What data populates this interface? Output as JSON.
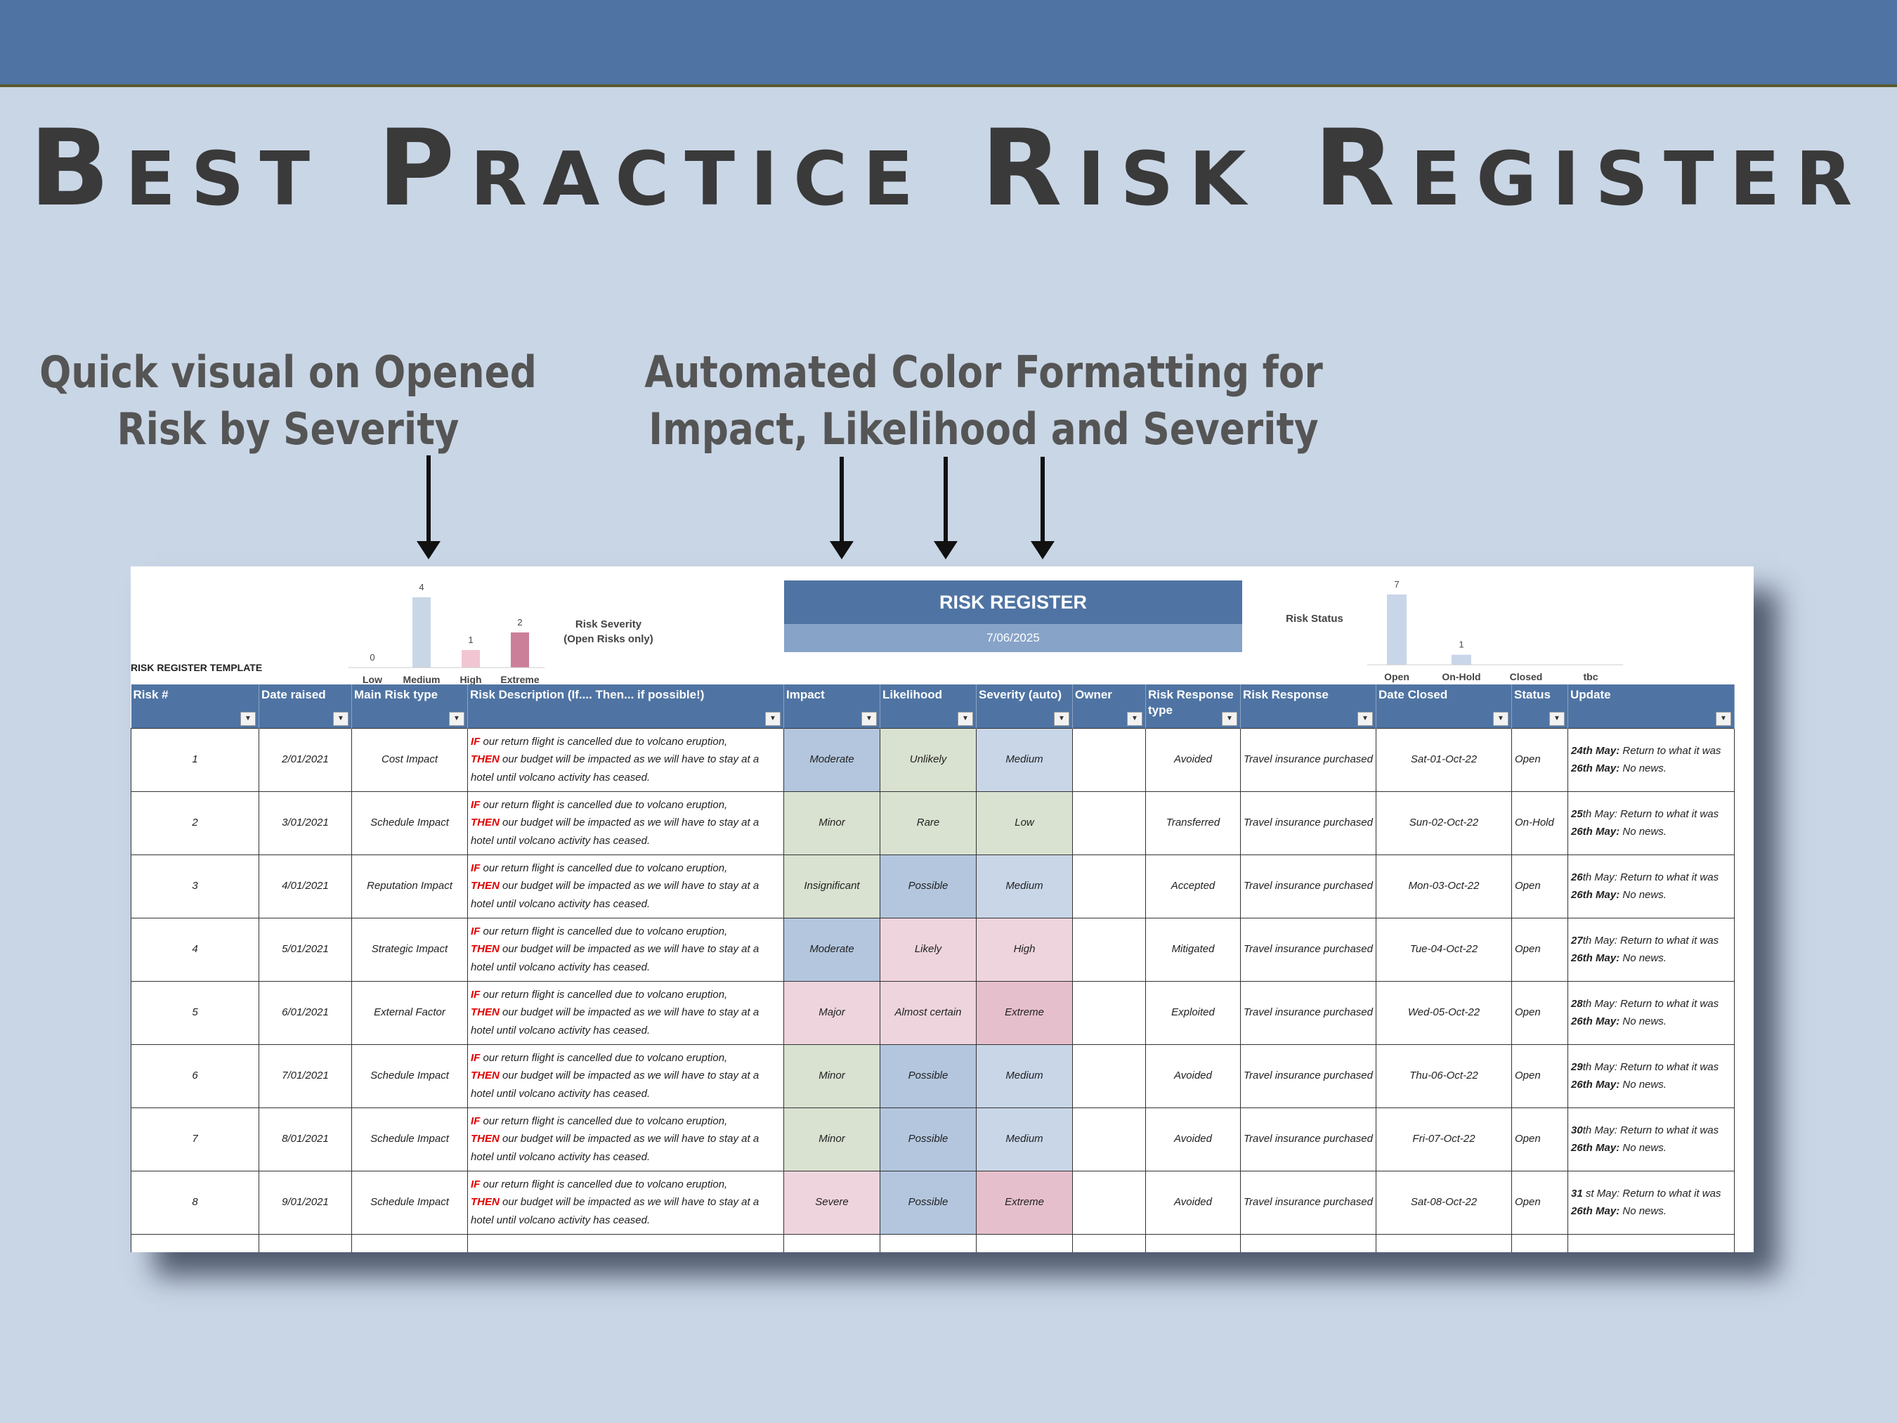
{
  "page": {
    "title": "Best Practice Risk Register",
    "callout_left": [
      "Quick visual on Opened",
      "Risk by Severity"
    ],
    "callout_right": [
      "Automated Color Formatting for",
      "Impact, Likelihood and Severity"
    ]
  },
  "sheet": {
    "template_label": "RISK REGISTER TEMPLATE",
    "banner_title": "RISK REGISTER",
    "banner_date": "7/06/2025",
    "severity_chart": {
      "caption": [
        "Risk Severity",
        "(Open Risks only)"
      ],
      "categories": [
        "Low",
        "Medium",
        "High",
        "Extreme"
      ],
      "values": [
        0,
        4,
        1,
        2
      ],
      "colors": [
        "#c9d6e6",
        "#c9d6e6",
        "#f1c6d2",
        "#cc7f98"
      ]
    },
    "status_chart": {
      "caption": "Risk Status",
      "categories": [
        "Open",
        "On-Hold",
        "Closed",
        "tbc"
      ],
      "values": [
        7,
        1,
        null,
        null
      ],
      "colors": [
        "#c9d6ea",
        "#c9d6ea",
        "#c9d6ea",
        "#c9d6ea"
      ]
    }
  },
  "colors": {
    "accent": "#4f74a3",
    "blue_cell": "#b3c6de",
    "light_blue_cell": "#c8d6e8",
    "green_cell": "#d9e1d0",
    "pink_cell": "#eed4dd",
    "rose_cell": "#e6bfcc"
  },
  "table": {
    "columns": [
      "Risk #",
      "Date raised",
      "Main Risk type",
      "Risk Description (If.... Then... if possible!)",
      "Impact",
      "Likelihood",
      "Severity  (auto)",
      "Owner",
      "Risk Response type",
      "Risk Response",
      "Date Closed",
      "Status",
      "Update"
    ],
    "desc": {
      "if": "IF",
      "if_text": " our return flight is cancelled due to volcano eruption,",
      "then": "THEN",
      "then_text": " our budget will be impacted as we will have to stay at a hotel until volcano activity has ceased."
    },
    "update_second": "26th May:",
    "update_second_text": " No news.",
    "rows": [
      {
        "id": "1",
        "date": "2/01/2021",
        "type": "Cost Impact",
        "impact": "Moderate",
        "likelihood": "Unlikely",
        "severity": "Medium",
        "owner": "",
        "resp_type": "Avoided",
        "response": "Travel insurance purchased",
        "closed": "Sat-01-Oct-22",
        "status": "Open",
        "upd_bold": "24th May:",
        "upd_text": " Return to what it was"
      },
      {
        "id": "2",
        "date": "3/01/2021",
        "type": "Schedule Impact",
        "impact": "Minor",
        "likelihood": "Rare",
        "severity": "Low",
        "owner": "",
        "resp_type": "Transferred",
        "response": "Travel insurance purchased",
        "closed": "Sun-02-Oct-22",
        "status": "On-Hold",
        "upd_bold": "25",
        "upd_text": "th May: Return to what it was"
      },
      {
        "id": "3",
        "date": "4/01/2021",
        "type": "Reputation Impact",
        "impact": "Insignificant",
        "likelihood": "Possible",
        "severity": "Medium",
        "owner": "",
        "resp_type": "Accepted",
        "response": "Travel insurance purchased",
        "closed": "Mon-03-Oct-22",
        "status": "Open",
        "upd_bold": "26",
        "upd_text": "th May: Return to what it was"
      },
      {
        "id": "4",
        "date": "5/01/2021",
        "type": "Strategic Impact",
        "impact": "Moderate",
        "likelihood": "Likely",
        "severity": "High",
        "owner": "",
        "resp_type": "Mitigated",
        "response": "Travel insurance purchased",
        "closed": "Tue-04-Oct-22",
        "status": "Open",
        "upd_bold": "27",
        "upd_text": "th May: Return to what it was"
      },
      {
        "id": "5",
        "date": "6/01/2021",
        "type": "External Factor",
        "impact": "Major",
        "likelihood": "Almost certain",
        "severity": "Extreme",
        "owner": "",
        "resp_type": "Exploited",
        "response": "Travel insurance purchased",
        "closed": "Wed-05-Oct-22",
        "status": "Open",
        "upd_bold": "28",
        "upd_text": "th May: Return to what it was"
      },
      {
        "id": "6",
        "date": "7/01/2021",
        "type": "Schedule Impact",
        "impact": "Minor",
        "likelihood": "Possible",
        "severity": "Medium",
        "owner": "",
        "resp_type": "Avoided",
        "response": "Travel insurance purchased",
        "closed": "Thu-06-Oct-22",
        "status": "Open",
        "upd_bold": "29",
        "upd_text": "th May: Return to what it was"
      },
      {
        "id": "7",
        "date": "8/01/2021",
        "type": "Schedule Impact",
        "impact": "Minor",
        "likelihood": "Possible",
        "severity": "Medium",
        "owner": "",
        "resp_type": "Avoided",
        "response": "Travel insurance purchased",
        "closed": "Fri-07-Oct-22",
        "status": "Open",
        "upd_bold": "30",
        "upd_text": "th May: Return to what it was"
      },
      {
        "id": "8",
        "date": "9/01/2021",
        "type": "Schedule Impact",
        "impact": "Severe",
        "likelihood": "Possible",
        "severity": "Extreme",
        "owner": "",
        "resp_type": "Avoided",
        "response": "Travel insurance purchased",
        "closed": "Sat-08-Oct-22",
        "status": "Open",
        "upd_bold": "31",
        "upd_text": " st May: Return to what it was"
      }
    ],
    "cell_colors": {
      "Moderate": "#b3c6de",
      "Minor": "#d9e1d0",
      "Insignificant": "#d9e1d0",
      "Major": "#eed4dd",
      "Severe": "#eed4dd",
      "Unlikely": "#d9e1d0",
      "Rare": "#d9e1d0",
      "Possible": "#b3c6de",
      "Likely": "#eed4dd",
      "Almost certain": "#eed4dd",
      "Low": "#d9e1d0",
      "Medium": "#c8d6e8",
      "High": "#eed4dd",
      "Extreme": "#e6bfcc"
    }
  }
}
